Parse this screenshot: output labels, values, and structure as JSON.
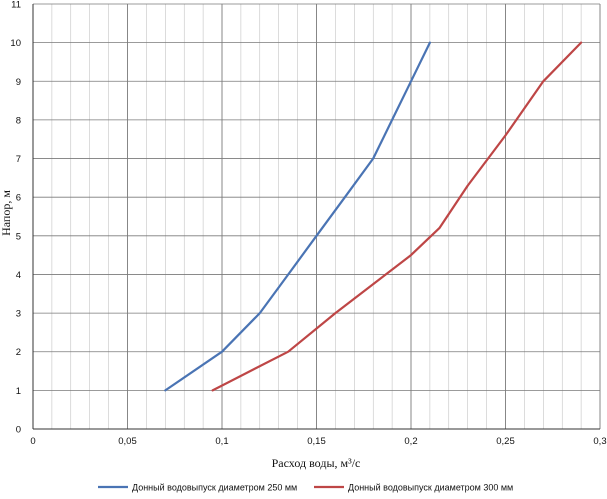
{
  "chart_data": {
    "type": "line",
    "title": "",
    "xlabel": "Расход воды, м³/с",
    "ylabel": "Напор, м",
    "xlim": [
      0,
      0.3
    ],
    "ylim": [
      0,
      11
    ],
    "x_ticks": [
      "0",
      "0,05",
      "0,1",
      "0,15",
      "0,2",
      "0,25",
      "0,3"
    ],
    "y_ticks": [
      "0",
      "1",
      "2",
      "3",
      "4",
      "5",
      "6",
      "7",
      "8",
      "9",
      "10",
      "11"
    ],
    "grid": true,
    "legend_position": "bottom",
    "series": [
      {
        "name": "Донный водовыпуск диаметром 250 мм",
        "color": "#4a74b4",
        "points": [
          [
            0.07,
            1
          ],
          [
            0.1,
            2
          ],
          [
            0.12,
            3
          ],
          [
            0.135,
            4
          ],
          [
            0.15,
            5
          ],
          [
            0.165,
            6
          ],
          [
            0.18,
            7
          ],
          [
            0.19,
            8
          ],
          [
            0.2,
            9
          ],
          [
            0.21,
            10
          ]
        ]
      },
      {
        "name": "Донный водовыпуск диаметром 300 мм",
        "color": "#be4646",
        "points": [
          [
            0.095,
            1
          ],
          [
            0.115,
            1.5
          ],
          [
            0.135,
            2
          ],
          [
            0.16,
            3
          ],
          [
            0.18,
            3.75
          ],
          [
            0.2,
            4.5
          ],
          [
            0.215,
            5.2
          ],
          [
            0.23,
            6.3
          ],
          [
            0.25,
            7.6
          ],
          [
            0.27,
            9
          ],
          [
            0.29,
            10
          ]
        ]
      }
    ]
  }
}
